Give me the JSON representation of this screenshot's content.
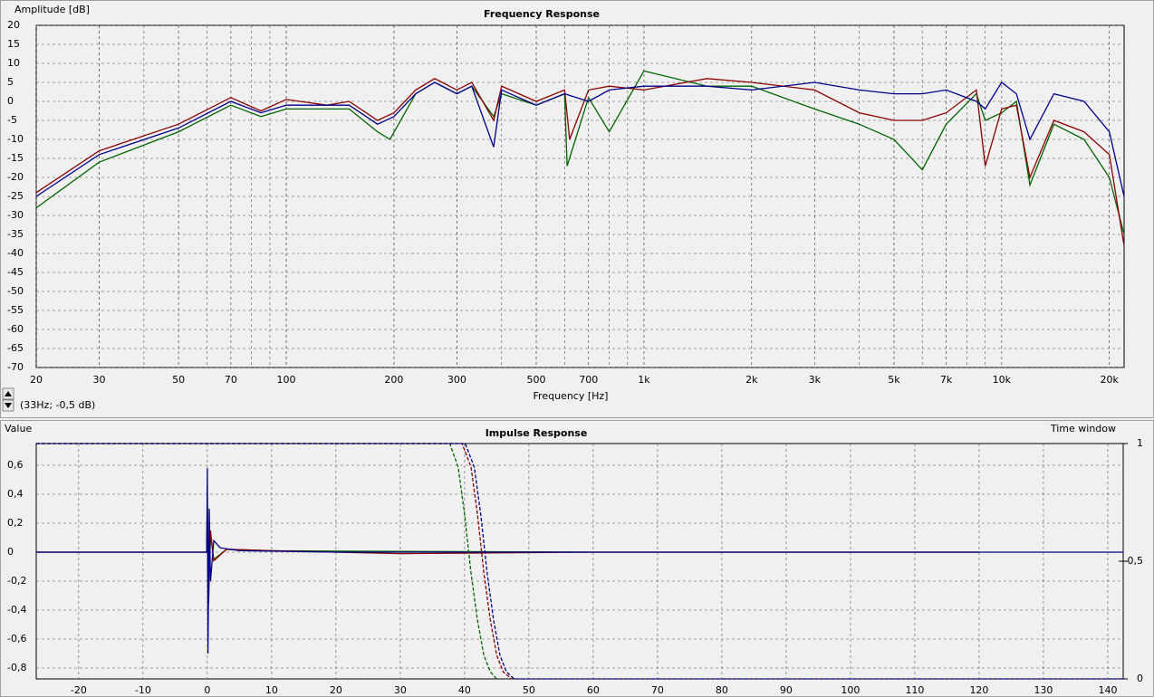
{
  "chart_data": [
    {
      "type": "line",
      "title": "Frequency Response",
      "ylabel": "Amplitude [dB]",
      "xlabel": "Frequency [Hz]",
      "cursor_readout": "(33Hz; -0,5 dB)",
      "xscale": "log",
      "grid": true,
      "minor_grid": true,
      "xlim": [
        20,
        22000
      ],
      "ylim": [
        -70,
        20
      ],
      "xticks": [
        20,
        30,
        50,
        70,
        100,
        200,
        300,
        500,
        700,
        {
          "value": 1000,
          "label": "1k"
        },
        {
          "value": 2000,
          "label": "2k"
        },
        {
          "value": 3000,
          "label": "3k"
        },
        {
          "value": 5000,
          "label": "5k"
        },
        {
          "value": 7000,
          "label": "7k"
        },
        {
          "value": 10000,
          "label": "10k"
        },
        {
          "value": 20000,
          "label": "20k"
        }
      ],
      "yticks": [
        20,
        15,
        10,
        5,
        0,
        -5,
        -10,
        -15,
        -20,
        -25,
        -30,
        -35,
        -40,
        -45,
        -50,
        -55,
        -60,
        -65,
        -70
      ],
      "series": [
        {
          "color": "#006400",
          "x": [
            20,
            30,
            50,
            70,
            85,
            100,
            130,
            150,
            180,
            195,
            230,
            260,
            300,
            330,
            380,
            400,
            500,
            600,
            610,
            700,
            800,
            1000,
            1500,
            2000,
            3000,
            4000,
            5000,
            6000,
            7000,
            8500,
            9000,
            10000,
            11000,
            12000,
            14000,
            17000,
            20000,
            22000
          ],
          "values": [
            -28,
            -16,
            -8,
            -1,
            -4,
            -2,
            -2,
            -2,
            -8,
            -10,
            2,
            5,
            2,
            4,
            -4,
            2,
            -1,
            2,
            -17,
            1,
            -8,
            8,
            4,
            4,
            -2,
            -6,
            -10,
            -18,
            -6,
            2,
            -5,
            -3,
            0,
            -22,
            -6,
            -10,
            -20,
            -35
          ]
        },
        {
          "color": "#8b0000",
          "x": [
            20,
            30,
            50,
            70,
            85,
            100,
            130,
            150,
            180,
            200,
            230,
            260,
            300,
            330,
            380,
            400,
            500,
            600,
            620,
            700,
            800,
            1000,
            1500,
            2000,
            3000,
            4000,
            5000,
            6000,
            7000,
            8500,
            9000,
            10000,
            11000,
            12000,
            14000,
            17000,
            20000,
            22000
          ],
          "values": [
            -24,
            -13,
            -6,
            1,
            -2.5,
            0.5,
            -1,
            0,
            -5,
            -3,
            3,
            6,
            3,
            5,
            -5,
            4,
            0,
            3,
            -10,
            3,
            4,
            3,
            6,
            5,
            3,
            -3,
            -5,
            -5,
            -3,
            3,
            -17,
            -2,
            -1,
            -20,
            -5,
            -8,
            -14,
            -38
          ]
        },
        {
          "color": "#00008b",
          "x": [
            20,
            30,
            50,
            70,
            85,
            100,
            130,
            150,
            180,
            200,
            230,
            260,
            300,
            330,
            380,
            400,
            500,
            600,
            700,
            800,
            1000,
            1500,
            2000,
            3000,
            4000,
            5000,
            6000,
            7000,
            8500,
            9000,
            10000,
            11000,
            12000,
            14000,
            17000,
            20000,
            22000
          ],
          "values": [
            -25,
            -14,
            -7,
            0,
            -3,
            -1,
            -1,
            -1,
            -6,
            -4,
            2,
            5,
            2,
            4,
            -12,
            3,
            -1,
            2,
            0,
            3,
            4,
            4,
            3,
            5,
            3,
            2,
            2,
            3,
            0,
            -2,
            5,
            2,
            -10,
            2,
            0,
            -8,
            -25
          ]
        }
      ]
    },
    {
      "type": "line",
      "title": "Impulse Response",
      "ylabel": "Value",
      "y2label": "Time window",
      "grid": true,
      "xlim": [
        -26.6,
        142.4
      ],
      "ylim": [
        -0.875,
        0.75
      ],
      "y2lim": [
        0,
        1
      ],
      "xticks": [
        -20,
        -10,
        0,
        10,
        20,
        30,
        40,
        50,
        60,
        70,
        80,
        90,
        100,
        110,
        120,
        130,
        140
      ],
      "yticks": [
        {
          "value": 0.6,
          "label": "0,6"
        },
        {
          "value": 0.4,
          "label": "0,4"
        },
        {
          "value": 0.2,
          "label": "0,2"
        },
        0,
        {
          "value": -0.2,
          "label": "-0,2"
        },
        {
          "value": -0.4,
          "label": "-0,4"
        },
        {
          "value": -0.6,
          "label": "-0,6"
        },
        {
          "value": -0.8,
          "label": "-0,8"
        }
      ],
      "y2ticks": [
        1,
        {
          "value": 0.5,
          "label": "0,5"
        },
        0
      ],
      "series": [
        {
          "color": "#006400",
          "x": [
            -26.6,
            -0.1,
            0,
            0.2,
            0.5,
            1,
            3,
            10,
            30,
            60,
            120
          ],
          "values": [
            0,
            0,
            0.3,
            -0.3,
            0.12,
            -0.05,
            0.02,
            0.01,
            0.005,
            0,
            0
          ]
        },
        {
          "color": "#8b0000",
          "x": [
            -26.6,
            -0.1,
            0,
            0.2,
            0.5,
            1,
            3,
            10,
            30,
            60,
            120
          ],
          "values": [
            0,
            0,
            0.35,
            -0.35,
            0.15,
            -0.06,
            0.02,
            0.01,
            -0.01,
            0,
            0
          ]
        },
        {
          "color": "#00008b",
          "x": [
            -26.6,
            -0.1,
            0,
            0.1,
            0.3,
            0.5,
            1,
            2,
            5,
            20,
            60,
            142.4
          ],
          "values": [
            0,
            0,
            0.58,
            -0.7,
            0.3,
            -0.2,
            0.08,
            0.03,
            0.01,
            0,
            0,
            0
          ]
        },
        {
          "color": "#006400",
          "axis": "y2",
          "style": "dashed",
          "x": [
            -26.6,
            37.7,
            39,
            40,
            41,
            42,
            43,
            44,
            45
          ],
          "values": [
            1,
            1,
            0.9,
            0.7,
            0.45,
            0.25,
            0.1,
            0.03,
            0
          ]
        },
        {
          "color": "#8b0000",
          "axis": "y2",
          "style": "dashed",
          "x": [
            -26.6,
            39.6,
            41,
            42,
            43,
            44,
            45,
            46,
            47.3
          ],
          "values": [
            1,
            1,
            0.9,
            0.7,
            0.45,
            0.25,
            0.1,
            0.03,
            0
          ]
        },
        {
          "color": "#00008b",
          "axis": "y2",
          "style": "dashed",
          "x": [
            -26.6,
            40.1,
            41.5,
            42.5,
            43.5,
            44.5,
            45.5,
            46.5,
            47.7,
            142.4
          ],
          "values": [
            1,
            1,
            0.9,
            0.7,
            0.45,
            0.25,
            0.1,
            0.03,
            0,
            0
          ]
        }
      ]
    }
  ]
}
